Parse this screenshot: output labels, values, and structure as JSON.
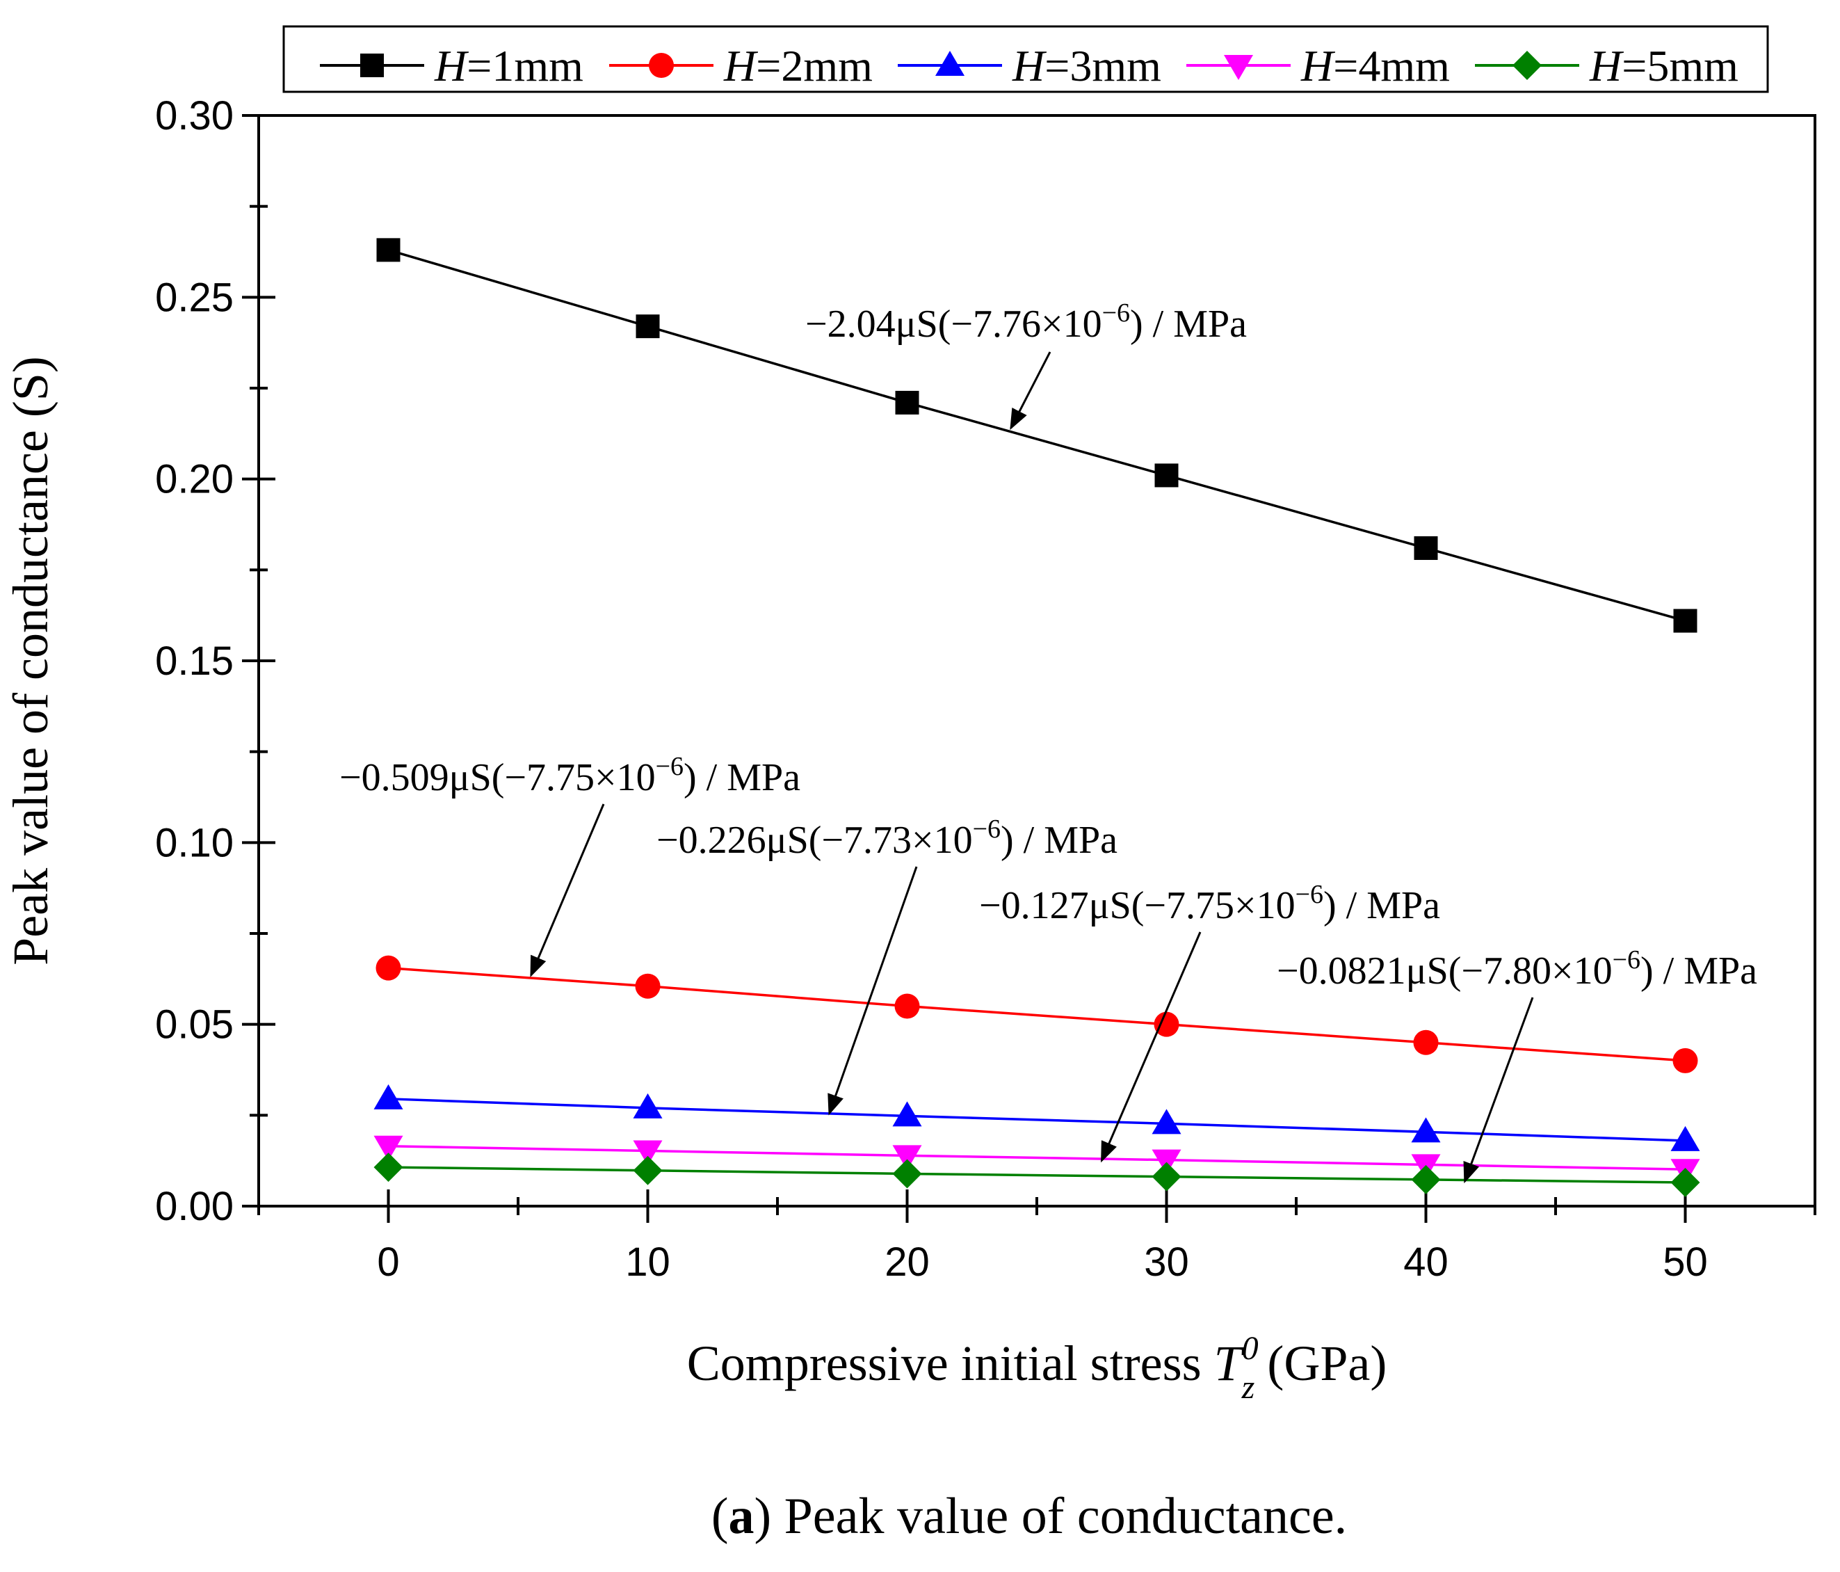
{
  "chart_data": {
    "type": "line",
    "x": [
      0,
      10,
      20,
      30,
      40,
      50
    ],
    "xlim": [
      -5,
      55
    ],
    "ylim": [
      0,
      0.3
    ],
    "xticks": [
      "0",
      "10",
      "20",
      "30",
      "40",
      "50"
    ],
    "yticks": [
      "0.00",
      "0.05",
      "0.10",
      "0.15",
      "0.20",
      "0.25",
      "0.30"
    ],
    "ylabel": "Peak value of conductance (S)",
    "xlabel": {
      "prefix": "Compressive initial stress ",
      "symbol": "T",
      "superscript": "0",
      "subscript": "z",
      "suffix": " (GPa)"
    },
    "series": [
      {
        "name": "H=1mm",
        "var": "H",
        "label": "=1mm",
        "color": "#000000",
        "marker": "square",
        "values": [
          0.263,
          0.242,
          0.221,
          0.201,
          0.181,
          0.161
        ]
      },
      {
        "name": "H=2mm",
        "var": "H",
        "label": "=2mm",
        "color": "#ff0000",
        "marker": "circle",
        "values": [
          0.0655,
          0.0605,
          0.055,
          0.05,
          0.045,
          0.04
        ]
      },
      {
        "name": "H=3mm",
        "var": "H",
        "label": "=3mm",
        "color": "#0000ff",
        "marker": "triangle-up",
        "values": [
          0.0295,
          0.027,
          0.0248,
          0.0227,
          0.0204,
          0.018
        ]
      },
      {
        "name": "H=4mm",
        "var": "H",
        "label": "=4mm",
        "color": "#ff00ff",
        "marker": "triangle-down",
        "values": [
          0.0165,
          0.0152,
          0.0139,
          0.0127,
          0.0114,
          0.0101
        ]
      },
      {
        "name": "H=5mm",
        "var": "H",
        "label": "=5mm",
        "color": "#008000",
        "marker": "diamond",
        "values": [
          0.0107,
          0.0098,
          0.0089,
          0.0081,
          0.0073,
          0.0065
        ]
      }
    ],
    "annotations": [
      {
        "series": "H=1mm",
        "base": "−2.04μS(−7.76×10",
        "exp": "−6",
        "tail": ") / MPa",
        "arrow_to": [
          24,
          0.214
        ]
      },
      {
        "series": "H=2mm",
        "base": "−0.509μS(−7.75×10",
        "exp": "−6",
        "tail": ") / MPa",
        "arrow_to": [
          5.5,
          0.0635
        ]
      },
      {
        "series": "H=3mm",
        "base": "−0.226μS(−7.73×10",
        "exp": "−6",
        "tail": ") / MPa",
        "arrow_to": [
          17,
          0.0255
        ]
      },
      {
        "series": "H=4mm",
        "base": "−0.127μS(−7.75×10",
        "exp": "−6",
        "tail": ") / MPa",
        "arrow_to": [
          27.5,
          0.0125
        ]
      },
      {
        "series": "H=5mm",
        "base": "−0.0821μS(−7.80×10",
        "exp": "−6",
        "tail": ") / MPa",
        "arrow_to": [
          41.5,
          0.0068
        ]
      }
    ],
    "legend_position": "top"
  },
  "caption": {
    "label": "a",
    "text": " Peak value of conductance."
  }
}
